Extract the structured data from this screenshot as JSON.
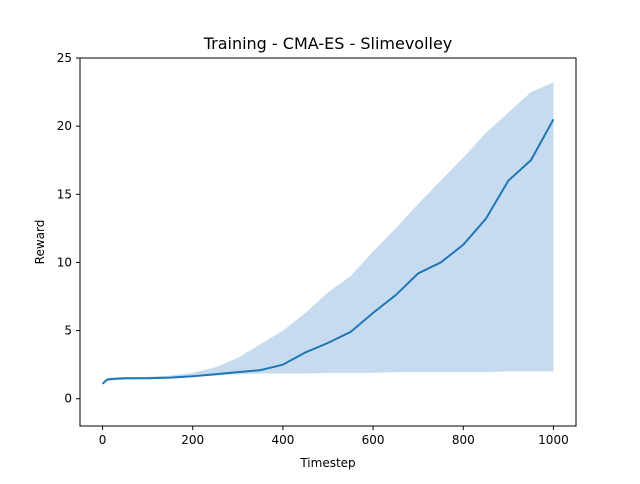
{
  "chart_data": {
    "type": "line",
    "title": "Training - CMA-ES - Slimevolley",
    "xlabel": "Timestep",
    "ylabel": "Reward",
    "xlim": [
      -50,
      1050
    ],
    "ylim": [
      -2,
      25
    ],
    "xticks": [
      0,
      200,
      400,
      600,
      800,
      1000
    ],
    "yticks": [
      0,
      5,
      10,
      15,
      20,
      25
    ],
    "grid": false,
    "legend": "none",
    "colors": {
      "line": "#1f77b4",
      "band": "#c6dbef",
      "axis": "#000000"
    },
    "series": [
      {
        "x": [
          0,
          10,
          20,
          50,
          100,
          150,
          200,
          250,
          300,
          350,
          400,
          450,
          500,
          550,
          600,
          650,
          700,
          750,
          800,
          850,
          900,
          950,
          1000
        ],
        "mean": [
          1.1,
          1.4,
          1.45,
          1.5,
          1.5,
          1.55,
          1.65,
          1.8,
          1.95,
          2.1,
          2.5,
          3.4,
          4.1,
          4.9,
          6.3,
          7.6,
          9.2,
          10.0,
          11.3,
          13.2,
          16.0,
          17.5,
          20.5
        ],
        "lower": [
          1.05,
          1.3,
          1.35,
          1.4,
          1.45,
          1.5,
          1.6,
          1.7,
          1.8,
          1.85,
          1.85,
          1.85,
          1.9,
          1.9,
          1.9,
          1.95,
          1.95,
          1.95,
          1.95,
          1.95,
          2.0,
          2.0,
          2.0
        ],
        "upper": [
          1.15,
          1.5,
          1.55,
          1.6,
          1.6,
          1.7,
          1.9,
          2.3,
          3.0,
          4.0,
          5.0,
          6.3,
          7.8,
          9.0,
          10.8,
          12.5,
          14.3,
          16.0,
          17.7,
          19.5,
          21.0,
          22.5,
          23.2
        ]
      }
    ]
  }
}
